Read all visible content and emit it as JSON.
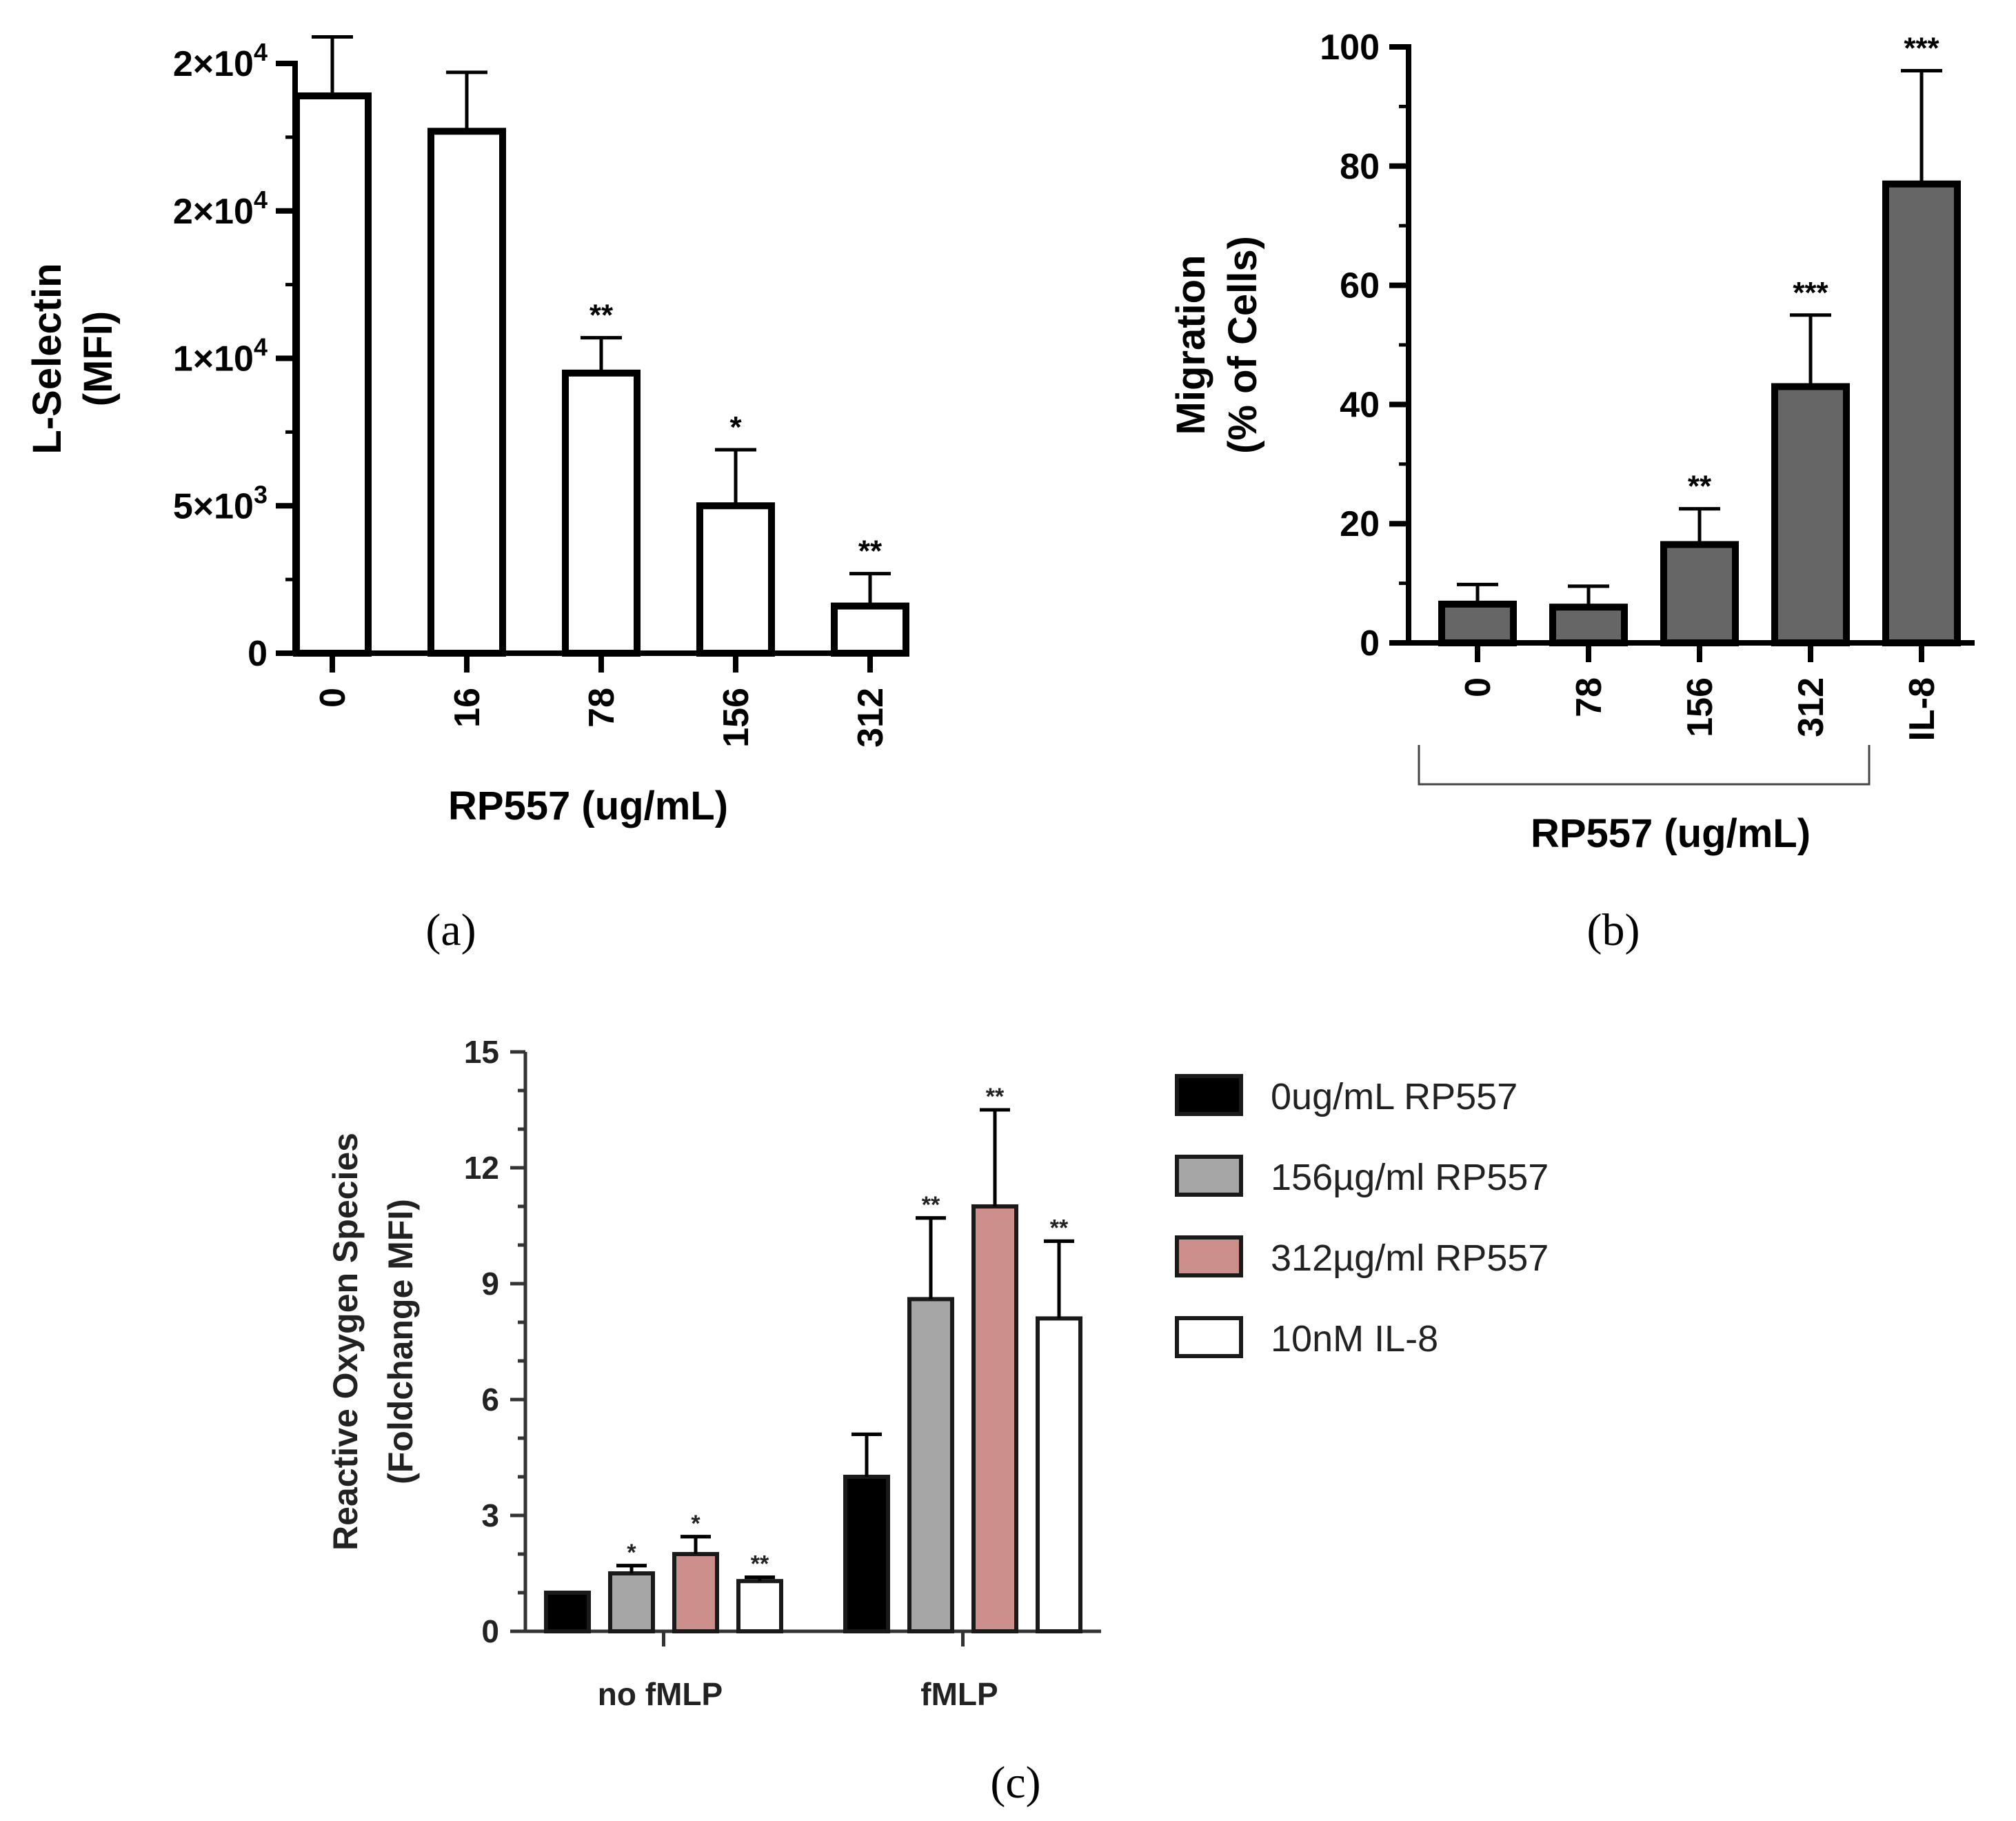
{
  "chart_data": [
    {
      "type": "bar",
      "panel": "(a)",
      "caption": "(a)",
      "ylabel_lines": [
        "L-Selectin",
        "(MFI)"
      ],
      "xlabel": "RP557 (ug/mL)",
      "categories": [
        "0",
        "16",
        "78",
        "156",
        "312"
      ],
      "values": [
        18900,
        17700,
        9500,
        5000,
        1600
      ],
      "errors": [
        2000,
        2000,
        1200,
        1900,
        1100
      ],
      "significance": [
        "",
        "",
        "**",
        "*",
        "**"
      ],
      "ylim": [
        0,
        20000
      ],
      "y_ticks": [
        0,
        5000,
        10000,
        15000,
        20000
      ],
      "y_tick_labels": [
        {
          "base": "0",
          "exp": ""
        },
        {
          "base": "5×10",
          "exp": "3"
        },
        {
          "base": "1×10",
          "exp": "4"
        },
        {
          "base": "2×10",
          "exp": "4"
        },
        {
          "base": "2×10",
          "exp": "4"
        }
      ],
      "bar_color": "#ffffff"
    },
    {
      "type": "bar",
      "panel": "(b)",
      "caption": "(b)",
      "ylabel_lines": [
        "Migration",
        "(% of Cells)"
      ],
      "xlabel": "RP557 (ug/mL)",
      "categories": [
        "0",
        "78",
        "156",
        "312",
        "IL-8"
      ],
      "bracket_categories": [
        "0",
        "78",
        "156",
        "312"
      ],
      "values": [
        6.5,
        6,
        16.5,
        43,
        77
      ],
      "errors": [
        3.3,
        3.5,
        6,
        12,
        19
      ],
      "significance": [
        "",
        "",
        "**",
        "***",
        "***"
      ],
      "ylim": [
        0,
        100
      ],
      "y_ticks": [
        0,
        20,
        40,
        60,
        80,
        100
      ],
      "bar_color": "#666666"
    },
    {
      "type": "bar",
      "panel": "(c)",
      "caption": "(c)",
      "ylabel_lines": [
        "Reactive Oxygen Species",
        "(Foldchange MFI)"
      ],
      "categories": [
        "no fMLP",
        "fMLP"
      ],
      "ylim": [
        0,
        15
      ],
      "y_ticks": [
        0,
        3,
        6,
        9,
        12,
        15
      ],
      "series": [
        {
          "name": "0ug/mL RP557",
          "color": "#000000",
          "values": [
            1.0,
            4.0
          ],
          "errors": [
            0,
            1.1
          ],
          "significance": [
            "",
            ""
          ]
        },
        {
          "name": "156µg/ml RP557",
          "color": "#a6a6a6",
          "values": [
            1.5,
            8.6
          ],
          "errors": [
            0.2,
            2.1
          ],
          "significance": [
            "*",
            "**"
          ]
        },
        {
          "name": "312µg/ml RP557",
          "color": "#cd8f8c",
          "values": [
            2.0,
            11.0
          ],
          "errors": [
            0.45,
            2.5
          ],
          "significance": [
            "*",
            "**"
          ]
        },
        {
          "name": "10nM IL-8",
          "color": "#ffffff",
          "values": [
            1.3,
            8.1
          ],
          "errors": [
            0.1,
            2.0
          ],
          "significance": [
            "**",
            "**"
          ]
        }
      ]
    }
  ]
}
